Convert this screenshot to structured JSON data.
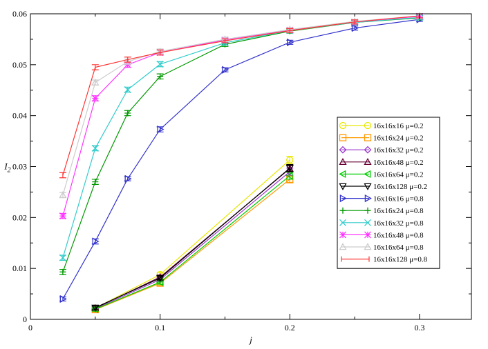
{
  "chart_data": {
    "type": "line",
    "xlabel": "j",
    "ylabel": "I2",
    "xlim": [
      0,
      0.34
    ],
    "ylim": [
      0,
      0.06
    ],
    "xticks": [
      0,
      0.1,
      0.2,
      0.3
    ],
    "xtick_labels": [
      "0",
      "0.1",
      "0.2",
      "0.3"
    ],
    "yticks": [
      0,
      0.01,
      0.02,
      0.03,
      0.04,
      0.05,
      0.06
    ],
    "ytick_labels": [
      "0",
      "0.01",
      "0.02",
      "0.03",
      "0.04",
      "0.05",
      "0.06"
    ],
    "grid": false,
    "legend_position": "right",
    "series": [
      {
        "name": "16x16x16 μ=0.2",
        "color": "#e8e800",
        "marker": "circle",
        "x": [
          0.05,
          0.1,
          0.2
        ],
        "y": [
          0.0022,
          0.0088,
          0.0313
        ],
        "err": [
          0.0004,
          0.0004,
          0.0007
        ]
      },
      {
        "name": "16x16x24 μ=0.2",
        "color": "#ff9900",
        "marker": "square",
        "x": [
          0.05,
          0.1,
          0.2
        ],
        "y": [
          0.0019,
          0.0071,
          0.0275
        ],
        "err": [
          0.0004,
          0.0004,
          0.0007
        ]
      },
      {
        "name": "16x16x32 μ=0.2",
        "color": "#9933cc",
        "marker": "diamond",
        "x": [
          0.05,
          0.1,
          0.2
        ],
        "y": [
          0.0021,
          0.0078,
          0.029
        ],
        "err": [
          0.0004,
          0.0004,
          0.0007
        ]
      },
      {
        "name": "16x16x48 μ=0.2",
        "color": "#660033",
        "marker": "triangle-up",
        "x": [
          0.05,
          0.1,
          0.2
        ],
        "y": [
          0.0022,
          0.0083,
          0.0296
        ],
        "err": [
          0.0004,
          0.0004,
          0.0007
        ]
      },
      {
        "name": "16x16x64 μ=0.2",
        "color": "#00cc00",
        "marker": "triangle-left",
        "x": [
          0.05,
          0.1,
          0.2
        ],
        "y": [
          0.002,
          0.0073,
          0.0282
        ],
        "err": [
          0.0004,
          0.0004,
          0.0007
        ]
      },
      {
        "name": "16x16x128 μ=0.2",
        "color": "#000000",
        "marker": "triangle-down",
        "x": [
          0.05,
          0.1,
          0.2
        ],
        "y": [
          0.0023,
          0.0081,
          0.0297
        ],
        "err": [
          0.0004,
          0.0004,
          0.0007
        ]
      },
      {
        "name": "16x16x16 μ=0.8",
        "color": "#3333cc",
        "marker": "triangle-right",
        "x": [
          0.025,
          0.05,
          0.075,
          0.1,
          0.15,
          0.2,
          0.25,
          0.3
        ],
        "y": [
          0.004,
          0.0153,
          0.0276,
          0.0373,
          0.049,
          0.0544,
          0.0572,
          0.0589
        ],
        "err": [
          0.0004,
          0.0005,
          0.0004,
          0.0005,
          0.0004,
          0.0004,
          0.0004,
          0.0004
        ]
      },
      {
        "name": "16x16x24 μ=0.8",
        "color": "#009900",
        "marker": "plus",
        "x": [
          0.025,
          0.05,
          0.075,
          0.1,
          0.15,
          0.2,
          0.25,
          0.3
        ],
        "y": [
          0.0093,
          0.027,
          0.0405,
          0.0477,
          0.054,
          0.0566,
          0.0583,
          0.0592
        ],
        "err": [
          0.0005,
          0.0005,
          0.0005,
          0.0005,
          0.0004,
          0.0004,
          0.0004,
          0.0004
        ]
      },
      {
        "name": "16x16x32 μ=0.8",
        "color": "#33cccc",
        "marker": "cross",
        "x": [
          0.025,
          0.05,
          0.075,
          0.1,
          0.15,
          0.2,
          0.25,
          0.3
        ],
        "y": [
          0.0121,
          0.0336,
          0.0451,
          0.0501,
          0.0543,
          0.0567,
          0.0583,
          0.0593
        ],
        "err": [
          0.0005,
          0.0005,
          0.0005,
          0.0005,
          0.0004,
          0.0004,
          0.0004,
          0.0004
        ]
      },
      {
        "name": "16x16x48 μ=0.8",
        "color": "#ff33ff",
        "marker": "asterisk",
        "x": [
          0.025,
          0.05,
          0.075,
          0.1,
          0.15,
          0.2,
          0.25,
          0.3
        ],
        "y": [
          0.0203,
          0.0434,
          0.05,
          0.0524,
          0.0549,
          0.0568,
          0.0584,
          0.0595
        ],
        "err": [
          0.0005,
          0.0005,
          0.0005,
          0.0005,
          0.0004,
          0.0004,
          0.0004,
          0.0004
        ]
      },
      {
        "name": "16x16x64 μ=0.8",
        "color": "#cccccc",
        "marker": "triangle-up",
        "x": [
          0.025,
          0.05,
          0.075,
          0.1,
          0.15,
          0.2,
          0.25,
          0.3
        ],
        "y": [
          0.0244,
          0.0465,
          0.0506,
          0.0526,
          0.055,
          0.0569,
          0.0585,
          0.0596
        ],
        "err": [
          0.0005,
          0.0005,
          0.0005,
          0.0005,
          0.0004,
          0.0004,
          0.0004,
          0.0004
        ]
      },
      {
        "name": "16x16x128 μ=0.8",
        "color": "#ff3333",
        "marker": "none",
        "x": [
          0.025,
          0.05,
          0.075,
          0.1,
          0.15,
          0.2,
          0.25,
          0.3
        ],
        "y": [
          0.0283,
          0.0495,
          0.051,
          0.0524,
          0.0547,
          0.0567,
          0.0584,
          0.0596
        ],
        "err": [
          0.0005,
          0.0005,
          0.0005,
          0.0005,
          0.0004,
          0.0004,
          0.0004,
          0.0004
        ]
      }
    ]
  }
}
